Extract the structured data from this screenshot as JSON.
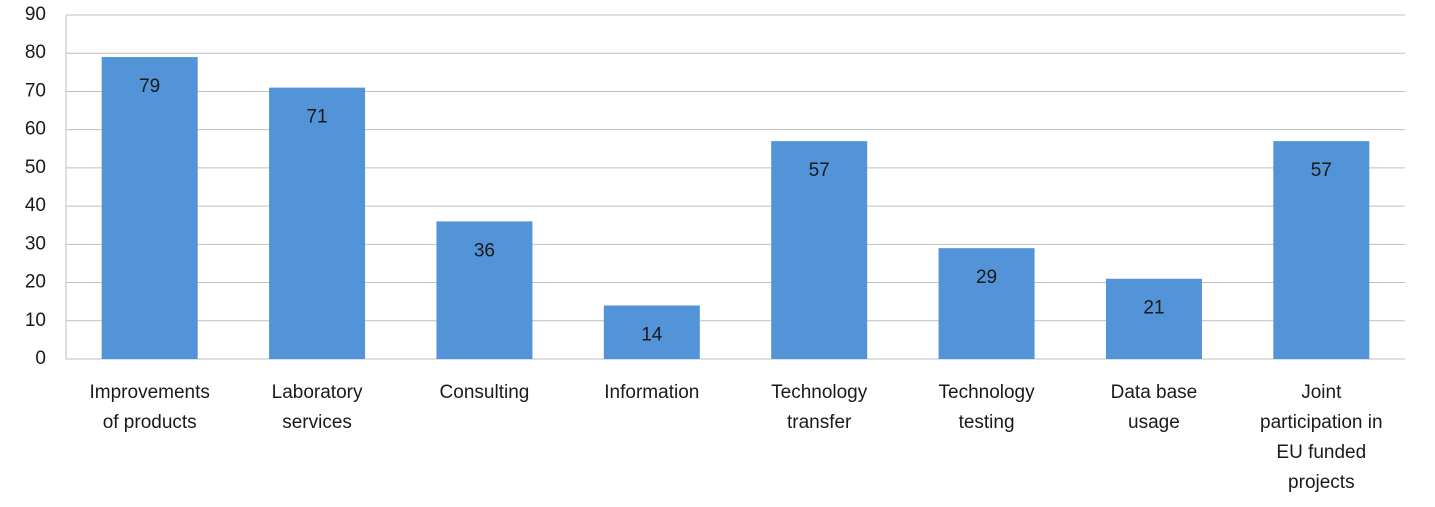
{
  "chart_data": {
    "type": "bar",
    "categories": [
      "Improvements\nof products",
      "Laboratory\nservices",
      "Consulting",
      "Information",
      "Technology\ntransfer",
      "Technology\ntesting",
      "Data base\nusage",
      "Joint\nparticipation in\nEU funded\nprojects"
    ],
    "values": [
      79,
      71,
      36,
      14,
      57,
      29,
      21,
      57
    ],
    "color": "#5393d8",
    "ylim": [
      0,
      90
    ],
    "yticks": [
      0,
      10,
      20,
      30,
      40,
      50,
      60,
      70,
      80,
      90
    ],
    "grid": true
  }
}
